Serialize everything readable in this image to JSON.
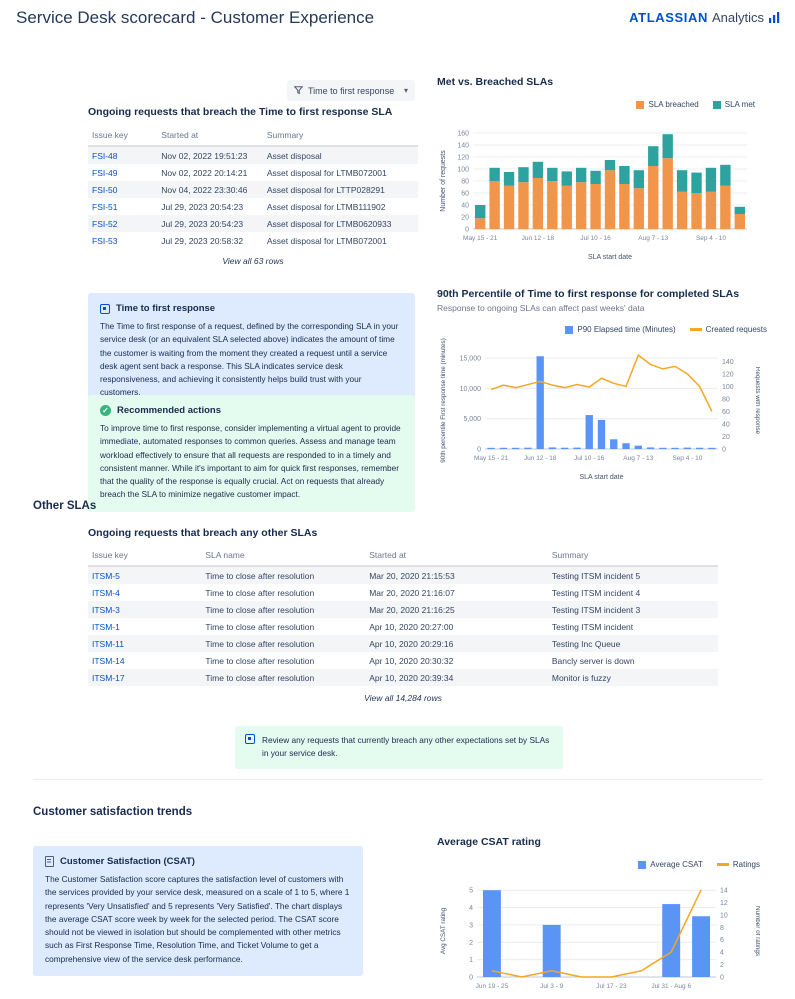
{
  "header": {
    "title": "Service Desk scorecard - Customer Experience",
    "brand": "ATLASSIAN",
    "brand_suffix": "Analytics"
  },
  "filter": {
    "label": "Time to first response"
  },
  "colors": {
    "accent": "#0052CC",
    "info_panel": "#DEEBFF",
    "success_panel": "#E3FCEF",
    "bar_orange": "#F0954A",
    "bar_teal": "#2CA39E",
    "bar_blue": "#5A95F5",
    "line_orange": "#F5A623"
  },
  "sections": {
    "other_slas": "Other SLAs",
    "csat_trends": "Customer satisfaction trends"
  },
  "ttfr_table": {
    "heading": "Ongoing requests that breach the Time to first response SLA",
    "columns": [
      "Issue key",
      "Started at",
      "Summary"
    ],
    "rows": [
      [
        "FSI-48",
        "Nov 02, 2022 19:51:23",
        "Asset disposal"
      ],
      [
        "FSI-49",
        "Nov 02, 2022 20:14:21",
        "Asset disposal for LTMB072001"
      ],
      [
        "FSI-50",
        "Nov 04, 2022 23:30:46",
        "Asset disposal for LTTP028291"
      ],
      [
        "FSI-51",
        "Jul 29, 2023 20:54:23",
        "Asset disposal for LTMB111902"
      ],
      [
        "FSI-52",
        "Jul 29, 2023 20:54:23",
        "Asset disposal for LTMB0620933"
      ],
      [
        "FSI-53",
        "Jul 29, 2023 20:58:32",
        "Asset disposal for LTMB072001"
      ]
    ],
    "view_all": "View all 63 rows"
  },
  "other_table": {
    "heading": "Ongoing requests that breach any other SLAs",
    "columns": [
      "Issue key",
      "SLA name",
      "Started at",
      "Summary"
    ],
    "rows": [
      [
        "ITSM-5",
        "Time to close after resolution",
        "Mar 20, 2020 21:15:53",
        "Testing ITSM incident 5"
      ],
      [
        "ITSM-4",
        "Time to close after resolution",
        "Mar 20, 2020 21:16:07",
        "Testing ITSM incident 4"
      ],
      [
        "ITSM-3",
        "Time to close after resolution",
        "Mar 20, 2020 21:16:25",
        "Testing ITSM incident 3"
      ],
      [
        "ITSM-1",
        "Time to close after resolution",
        "Apr 10, 2020 20:27:00",
        "Testing ITSM incident"
      ],
      [
        "ITSM-11",
        "Time to close after resolution",
        "Apr 10, 2020 20:29:16",
        "Testing Inc Queue"
      ],
      [
        "ITSM-14",
        "Time to close after resolution",
        "Apr 10, 2020 20:30:32",
        "Bancly server is down"
      ],
      [
        "ITSM-17",
        "Time to close after resolution",
        "Apr 10, 2020 20:39:34",
        "Monitor is fuzzy"
      ]
    ],
    "view_all": "View all 14,284 rows"
  },
  "panels": {
    "info": {
      "title": "Time to first response",
      "body": "The Time to first response of a request, defined by the corresponding SLA in your service desk (or an equivalent SLA selected above) indicates the amount of time the customer is waiting from the moment they created a request until a service desk agent sent back a response. This SLA indicates service desk responsiveness, and achieving it consistently helps build trust with your customers."
    },
    "actions": {
      "title": "Recommended actions",
      "body": "To improve time to first response, consider implementing a virtual agent to provide immediate, automated responses to common queries. Assess and manage team workload effectively to ensure that all requests are responded to in a timely and consistent manner. While it's important to aim for quick first responses, remember that the quality of the response is equally crucial. Act on requests that already breach the SLA to minimize negative customer impact."
    },
    "review_note": "Review any requests that currently breach any other expectations set by SLAs in your service desk.",
    "csat": {
      "title": "Customer Satisfaction (CSAT)",
      "body": "The Customer Satisfaction score captures the satisfaction level of customers with the services provided by your service desk, measured on a scale of 1 to 5, where 1 represents 'Very Unsatisfied' and 5 represents 'Very Satisfied'. The chart displays the average CSAT score week by week for the selected period. The CSAT score should not be viewed in isolation but should be complemented with other metrics such as First Response Time, Resolution Time, and Ticket Volume to get a comprehensive view of the service desk performance."
    }
  },
  "chart_data": [
    {
      "type": "bar",
      "stacked": true,
      "title": "Met vs. Breached SLAs",
      "categories": [
        "May 15 - 21",
        "May 22 - 28",
        "May 29 - Jun 4",
        "Jun 5 - 11",
        "Jun 12 - 18",
        "Jun 19 - 25",
        "Jun 26 - Jul 2",
        "Jul 3 - 9",
        "Jul 10 - 16",
        "Jul 17 - 23",
        "Jul 24 - 30",
        "Jul 31 - Aug 6",
        "Aug 7 - 13",
        "Aug 14 - 20",
        "Aug 21 - 27",
        "Aug 28 - Sep 3",
        "Sep 4 - 10",
        "Sep 11 - 17",
        "Sep 18 - 24"
      ],
      "series": [
        {
          "name": "SLA breached",
          "color": "#F0954A",
          "values": [
            18,
            80,
            72,
            78,
            85,
            80,
            72,
            78,
            75,
            98,
            75,
            68,
            105,
            118,
            62,
            60,
            62,
            72,
            25
          ]
        },
        {
          "name": "SLA met",
          "color": "#2CA39E",
          "values": [
            22,
            22,
            23,
            25,
            27,
            22,
            24,
            24,
            22,
            17,
            30,
            30,
            33,
            40,
            36,
            34,
            40,
            35,
            12
          ]
        }
      ],
      "xlabel": "SLA start date",
      "ylabel": "Number of requests",
      "ylim": [
        0,
        160
      ],
      "ytick_step": 20,
      "xtick_every": 4,
      "grid": true,
      "legend_position": "top-right"
    },
    {
      "type": "bar-line",
      "title": "90th Percentile of Time to first response for completed SLAs",
      "subtitle": "Response to ongoing SLAs can affect past weeks' data",
      "categories": [
        "May 15 - 21",
        "May 22 - 28",
        "May 29 - Jun 4",
        "Jun 5 - 11",
        "Jun 12 - 18",
        "Jun 19 - 25",
        "Jun 26 - Jul 2",
        "Jul 3 - 9",
        "Jul 10 - 16",
        "Jul 17 - 23",
        "Jul 24 - 30",
        "Jul 31 - Aug 6",
        "Aug 7 - 13",
        "Aug 14 - 20",
        "Aug 21 - 27",
        "Aug 28 - Sep 3",
        "Sep 4 - 10",
        "Sep 11 - 17",
        "Sep 18 - 24"
      ],
      "bar_series": {
        "name": "P90 Elapsed time (Minutes)",
        "color": "#5A95F5",
        "values": [
          150,
          200,
          180,
          220,
          15300,
          260,
          210,
          230,
          5600,
          4800,
          1600,
          950,
          550,
          260,
          200,
          180,
          230,
          210,
          150
        ]
      },
      "line_series": {
        "name": "Created requests",
        "color": "#F5A623",
        "values": [
          95,
          102,
          98,
          103,
          108,
          102,
          98,
          103,
          99,
          113,
          105,
          100,
          150,
          135,
          128,
          132,
          120,
          100,
          60
        ]
      },
      "xlabel": "SLA start date",
      "ylabel_left": "90th percentile First response time (minutes)",
      "ylabel_right": "Requests with response",
      "ylim_left": [
        0,
        16000
      ],
      "yticks_left": [
        0,
        5000,
        10000,
        15000
      ],
      "ylim_right": [
        0,
        155
      ],
      "yticks_right": [
        0,
        20,
        40,
        60,
        80,
        100,
        120,
        140
      ],
      "xtick_every": 4,
      "grid": true,
      "legend_position": "top-right"
    },
    {
      "type": "bar-line",
      "title": "Average CSAT rating",
      "categories": [
        "Jun 19 - 25",
        "Jun 26 - Jul 2",
        "Jul 3 - 9",
        "Jul 10 - 16",
        "Jul 17 - 23",
        "Jul 24 - 30",
        "Jul 31 - Aug 6",
        "Aug 7 - 13"
      ],
      "bar_series": {
        "name": "Average CSAT",
        "color": "#5A95F5",
        "values": [
          5,
          null,
          3,
          null,
          null,
          null,
          4.2,
          3.5
        ]
      },
      "line_series": {
        "name": "Ratings",
        "color": "#F5A623",
        "values": [
          1,
          0,
          1,
          0,
          0,
          1,
          4,
          14
        ]
      },
      "xlabel": "Resolution date",
      "ylabel_left": "Avg CSAT rating",
      "ylabel_right": "Number of ratings",
      "ylim_left": [
        0,
        5.3
      ],
      "yticks_left": [
        0,
        1,
        2,
        3,
        4,
        5
      ],
      "ylim_right": [
        0,
        14.8
      ],
      "yticks_right": [
        0,
        2,
        4,
        6,
        8,
        10,
        12,
        14
      ],
      "xtick_indices": [
        0,
        2,
        4,
        6
      ],
      "grid": true,
      "legend_position": "top-right"
    }
  ]
}
